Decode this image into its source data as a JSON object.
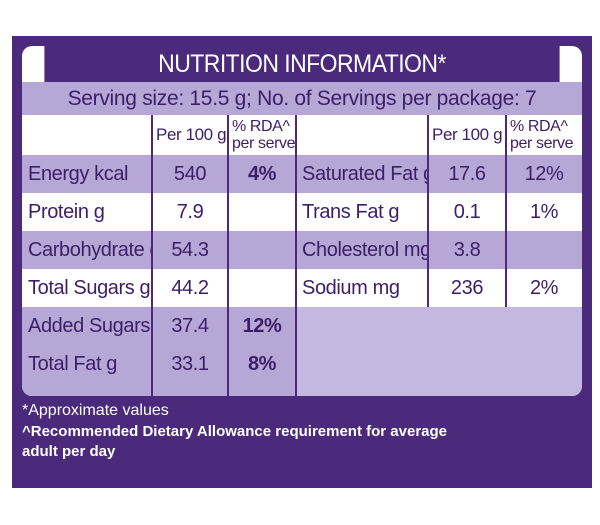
{
  "title": "NUTRITION INFORMATION*",
  "serving_line": "Serving size: 15.5 g; No. of Servings per package: 7",
  "headers": {
    "left_per100": "Per 100 g",
    "left_rda_line1": "% RDA^",
    "left_rda_line2": "per serve",
    "right_per100": "Per 100 g",
    "right_rda_line1": "% RDA^",
    "right_rda_line2": "per serve"
  },
  "left_rows": [
    {
      "label": "Energy kcal",
      "per100": "540",
      "rda": "4%"
    },
    {
      "label": "Protein g",
      "per100": "7.9",
      "rda": ""
    },
    {
      "label": "Carbohydrate g",
      "per100": "54.3",
      "rda": ""
    },
    {
      "label": "Total Sugars g",
      "per100": "44.2",
      "rda": ""
    },
    {
      "label": "Added Sugars g",
      "per100": "37.4",
      "rda": "12%"
    },
    {
      "label": "Total Fat g",
      "per100": "33.1",
      "rda": "8%"
    }
  ],
  "right_rows": [
    {
      "label": "Saturated Fat g",
      "per100": "17.6",
      "rda": "12%"
    },
    {
      "label": "Trans Fat g",
      "per100": "0.1",
      "rda": "1%"
    },
    {
      "label": "Cholesterol mg",
      "per100": "3.8",
      "rda": ""
    },
    {
      "label": "Sodium mg",
      "per100": "236",
      "rda": "2%"
    },
    {
      "label": "",
      "per100": "",
      "rda": ""
    },
    {
      "label": "",
      "per100": "",
      "rda": ""
    }
  ],
  "notes": {
    "approx": "*Approximate values",
    "rda_line1": "^Recommended Dietary Allowance requirement for average",
    "rda_line2": "adult per day"
  },
  "colors": {
    "panel": "#4b2a7b",
    "lavender": "#b7a7d6",
    "text": "#3b1f66",
    "white": "#ffffff"
  }
}
